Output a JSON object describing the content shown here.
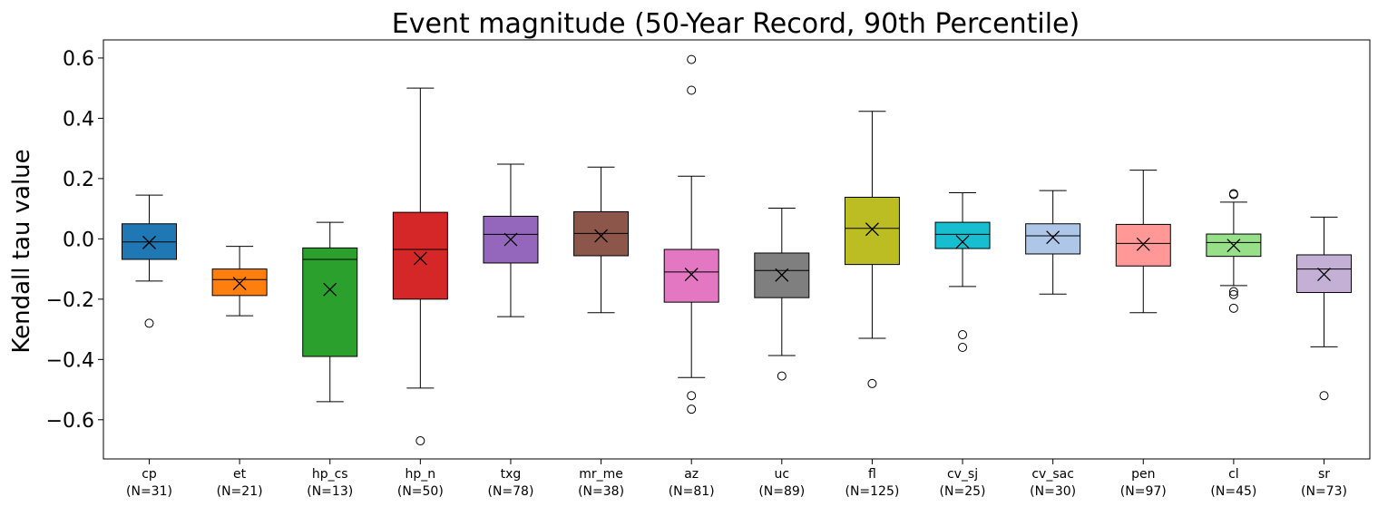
{
  "chart_data": {
    "type": "box",
    "title": "Event magnitude (50-Year Record, 90th Percentile)",
    "xlabel": "",
    "ylabel": "Kendall tau value",
    "ylim": [
      -0.73,
      0.66
    ],
    "yticks": [
      -0.6,
      -0.4,
      -0.2,
      0.0,
      0.2,
      0.4,
      0.6
    ],
    "ytick_labels": [
      "−0.6",
      "−0.4",
      "−0.2",
      "0.0",
      "0.2",
      "0.4",
      "0.6"
    ],
    "grid": false,
    "mean_marker": "x",
    "categories": [
      {
        "name": "cp",
        "n_label": "(N=31)",
        "color": "#1f77b4",
        "whisker_low": -0.14,
        "q1": -0.068,
        "median": -0.01,
        "q3": 0.05,
        "whisker_high": 0.145,
        "mean": -0.012,
        "outliers": [
          -0.28
        ]
      },
      {
        "name": "et",
        "n_label": "(N=21)",
        "color": "#ff7f0e",
        "whisker_low": -0.255,
        "q1": -0.188,
        "median": -0.135,
        "q3": -0.1,
        "whisker_high": -0.025,
        "mean": -0.148,
        "outliers": []
      },
      {
        "name": "hp_cs",
        "n_label": "(N=13)",
        "color": "#2ca02c",
        "whisker_low": -0.54,
        "q1": -0.39,
        "median": -0.068,
        "q3": -0.03,
        "whisker_high": 0.055,
        "mean": -0.168,
        "outliers": []
      },
      {
        "name": "hp_n",
        "n_label": "(N=50)",
        "color": "#d62728",
        "whisker_low": -0.495,
        "q1": -0.2,
        "median": -0.035,
        "q3": 0.088,
        "whisker_high": 0.5,
        "mean": -0.065,
        "outliers": [
          -0.67
        ]
      },
      {
        "name": "txg",
        "n_label": "(N=78)",
        "color": "#9467bd",
        "whisker_low": -0.258,
        "q1": -0.08,
        "median": 0.015,
        "q3": 0.075,
        "whisker_high": 0.248,
        "mean": -0.002,
        "outliers": []
      },
      {
        "name": "mr_me",
        "n_label": " (N=38)",
        "color": "#8c564b",
        "whisker_low": -0.245,
        "q1": -0.056,
        "median": 0.018,
        "q3": 0.09,
        "whisker_high": 0.238,
        "mean": 0.01,
        "outliers": []
      },
      {
        "name": "az",
        "n_label": "(N=81)",
        "color": "#e377c2",
        "whisker_low": -0.46,
        "q1": -0.21,
        "median": -0.11,
        "q3": -0.035,
        "whisker_high": 0.208,
        "mean": -0.118,
        "outliers": [
          -0.52,
          -0.565,
          0.493,
          0.595
        ]
      },
      {
        "name": "uc",
        "n_label": "(N=89)",
        "color": "#7f7f7f",
        "whisker_low": -0.387,
        "q1": -0.195,
        "median": -0.105,
        "q3": -0.047,
        "whisker_high": 0.102,
        "mean": -0.12,
        "outliers": [
          -0.455
        ]
      },
      {
        "name": "fl",
        "n_label": "(N=125)",
        "color": "#bcbd22",
        "whisker_low": -0.33,
        "q1": -0.085,
        "median": 0.035,
        "q3": 0.138,
        "whisker_high": 0.423,
        "mean": 0.032,
        "outliers": [
          -0.48
        ]
      },
      {
        "name": "cv_sj",
        "n_label": "(N=25)",
        "color": "#17becf",
        "whisker_low": -0.158,
        "q1": -0.032,
        "median": 0.015,
        "q3": 0.055,
        "whisker_high": 0.153,
        "mean": -0.01,
        "outliers": [
          -0.318,
          -0.36
        ]
      },
      {
        "name": "cv_sac",
        "n_label": "(N=30)",
        "color": "#aec7e8",
        "whisker_low": -0.183,
        "q1": -0.05,
        "median": 0.01,
        "q3": 0.05,
        "whisker_high": 0.16,
        "mean": 0.005,
        "outliers": []
      },
      {
        "name": "pen",
        "n_label": "(N=97)",
        "color": "#ff9896",
        "whisker_low": -0.245,
        "q1": -0.09,
        "median": -0.015,
        "q3": 0.048,
        "whisker_high": 0.228,
        "mean": -0.018,
        "outliers": []
      },
      {
        "name": "cl",
        "n_label": "(N=45)",
        "color": "#98df8a",
        "whisker_low": -0.155,
        "q1": -0.058,
        "median": -0.012,
        "q3": 0.016,
        "whisker_high": 0.122,
        "mean": -0.022,
        "outliers": [
          -0.175,
          -0.185,
          -0.23,
          0.147,
          0.15
        ]
      },
      {
        "name": "sr",
        "n_label": "(N=73)",
        "color": "#c5b0d5",
        "whisker_low": -0.358,
        "q1": -0.178,
        "median": -0.1,
        "q3": -0.053,
        "whisker_high": 0.072,
        "mean": -0.118,
        "outliers": [
          -0.52
        ]
      }
    ]
  }
}
